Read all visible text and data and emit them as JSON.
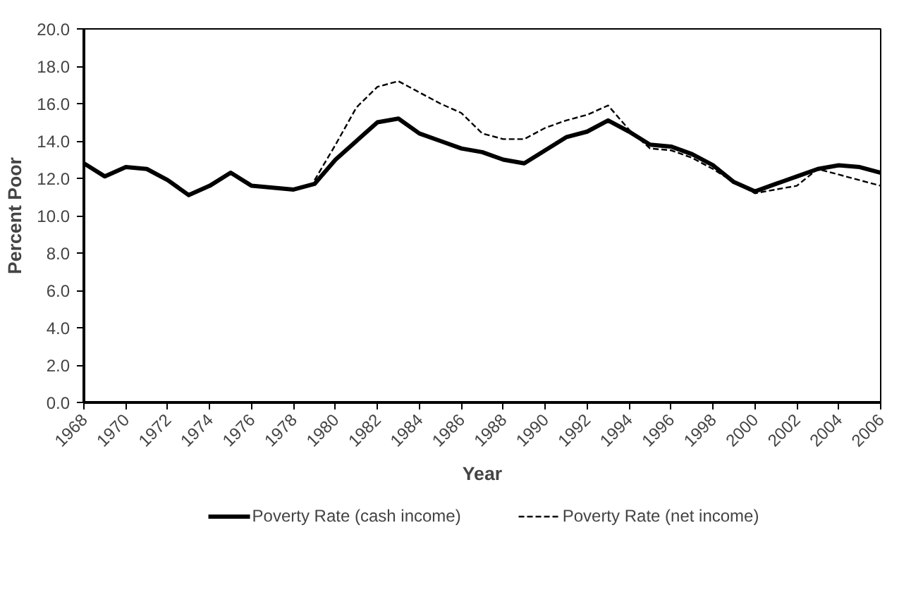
{
  "chart_data": {
    "type": "line",
    "xlabel": "Year",
    "ylabel": "Percent Poor",
    "xlim": [
      1968,
      2006
    ],
    "xticks": [
      1968,
      1970,
      1972,
      1974,
      1976,
      1978,
      1980,
      1982,
      1984,
      1986,
      1988,
      1990,
      1992,
      1994,
      1996,
      1998,
      2000,
      2002,
      2004,
      2006
    ],
    "ylim": [
      0,
      20
    ],
    "yticks": [
      {
        "value": 0,
        "label": "0.0"
      },
      {
        "value": 2,
        "label": "2.0"
      },
      {
        "value": 4,
        "label": "4.0"
      },
      {
        "value": 6,
        "label": "6.0"
      },
      {
        "value": 8,
        "label": "8.0"
      },
      {
        "value": 10,
        "label": "10.0"
      },
      {
        "value": 12,
        "label": "12.0"
      },
      {
        "value": 14,
        "label": "14.0"
      },
      {
        "value": 16,
        "label": "16.0"
      },
      {
        "value": 18,
        "label": "18.0"
      },
      {
        "value": 20,
        "label": "20.0"
      }
    ],
    "grid": false,
    "legend": "bottom",
    "marker": "none",
    "series": [
      {
        "name": "Poverty Rate (cash income)",
        "color": "#000000",
        "line_style": "solid",
        "x": [
          1968,
          1969,
          1970,
          1971,
          1972,
          1973,
          1974,
          1975,
          1976,
          1977,
          1978,
          1979,
          1980,
          1981,
          1982,
          1983,
          1984,
          1985,
          1986,
          1987,
          1988,
          1989,
          1990,
          1991,
          1992,
          1993,
          1994,
          1995,
          1996,
          1997,
          1998,
          1999,
          2000,
          2001,
          2002,
          2003,
          2004,
          2005,
          2006
        ],
        "values": [
          12.8,
          12.1,
          12.6,
          12.5,
          11.9,
          11.1,
          11.6,
          12.3,
          11.6,
          11.5,
          11.4,
          11.7,
          13.0,
          14.0,
          15.0,
          15.2,
          14.4,
          14.0,
          13.6,
          13.4,
          13.0,
          12.8,
          13.5,
          14.2,
          14.5,
          15.1,
          14.5,
          13.8,
          13.7,
          13.3,
          12.7,
          11.8,
          11.3,
          11.7,
          12.1,
          12.5,
          12.7,
          12.6,
          12.3
        ]
      },
      {
        "name": "Poverty Rate (net income)",
        "color": "#000000",
        "line_style": "dashed",
        "x": [
          1979,
          1980,
          1981,
          1982,
          1983,
          1984,
          1985,
          1986,
          1987,
          1988,
          1989,
          1990,
          1991,
          1992,
          1993,
          1994,
          1995,
          1996,
          1997,
          1998,
          1999,
          2000,
          2001,
          2002,
          2003,
          2004,
          2005,
          2006
        ],
        "values": [
          11.9,
          13.8,
          15.8,
          16.9,
          17.2,
          16.6,
          16.0,
          15.5,
          14.4,
          14.1,
          14.1,
          14.7,
          15.1,
          15.4,
          15.9,
          14.6,
          13.6,
          13.5,
          13.1,
          12.5,
          11.8,
          11.2,
          11.4,
          11.6,
          12.5,
          12.2,
          11.9,
          11.6
        ]
      }
    ]
  }
}
